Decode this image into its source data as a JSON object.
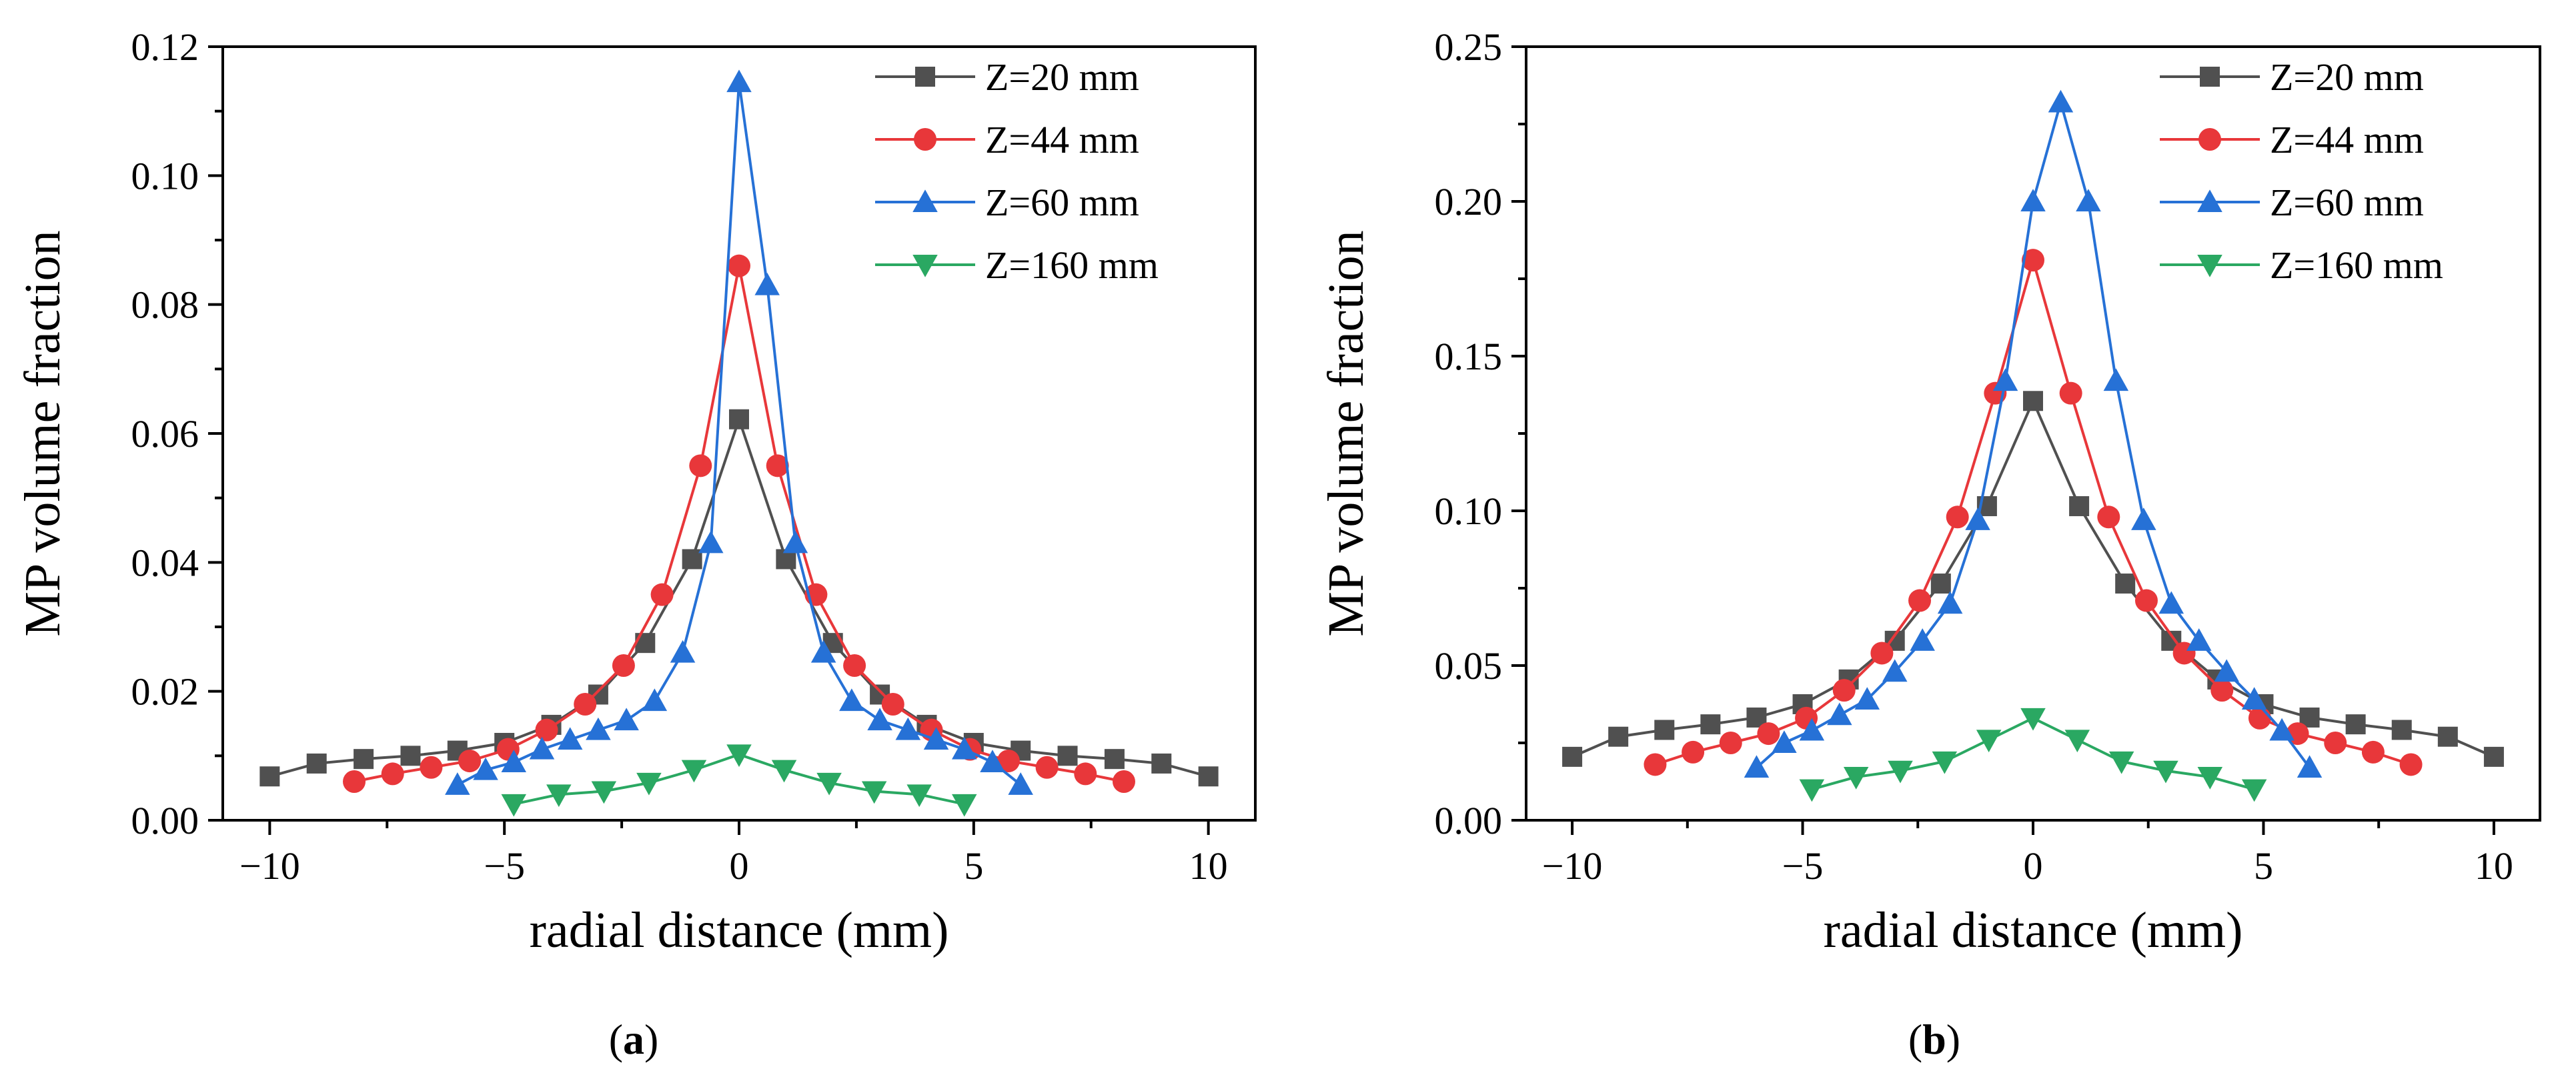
{
  "chart_data": [
    {
      "type": "line",
      "panel_label": "a",
      "xlabel": "radial distance (mm)",
      "ylabel": "MP volume fraction",
      "xlim": [
        -11,
        11
      ],
      "ylim": [
        0,
        0.12
      ],
      "xticks": [
        -10,
        -5,
        0,
        5,
        10
      ],
      "yticks": [
        0.0,
        0.02,
        0.04,
        0.06,
        0.08,
        0.1,
        0.12
      ],
      "xtick_labels": [
        "−10",
        "−5",
        "0",
        "5",
        "10"
      ],
      "ytick_labels": [
        "0.00",
        "0.02",
        "0.04",
        "0.06",
        "0.08",
        "0.10",
        "0.12"
      ],
      "legend_position": "top-right",
      "series": [
        {
          "name": "Z=20 mm",
          "color": "#505050",
          "marker": "square",
          "x": [
            -10,
            -9,
            -8,
            -7,
            -6,
            -5,
            -4,
            -3,
            -2,
            -1,
            0,
            1,
            2,
            3,
            4,
            5,
            6,
            7,
            8,
            9,
            10
          ],
          "y": [
            0.0068,
            0.0088,
            0.0095,
            0.01,
            0.0108,
            0.012,
            0.0148,
            0.0195,
            0.0275,
            0.0405,
            0.0622,
            0.0405,
            0.0275,
            0.0195,
            0.0148,
            0.012,
            0.0108,
            0.01,
            0.0095,
            0.0088,
            0.0068
          ]
        },
        {
          "name": "Z=44 mm",
          "color": "#e8373a",
          "marker": "circle",
          "x": [
            -8.2,
            -7.38,
            -6.56,
            -5.74,
            -4.92,
            -4.1,
            -3.28,
            -2.46,
            -1.64,
            -0.82,
            0,
            0.82,
            1.64,
            2.46,
            3.28,
            4.1,
            4.92,
            5.74,
            6.56,
            7.38,
            8.2
          ],
          "y": [
            0.006,
            0.0072,
            0.0082,
            0.0092,
            0.011,
            0.014,
            0.018,
            0.024,
            0.035,
            0.055,
            0.086,
            0.055,
            0.035,
            0.024,
            0.018,
            0.014,
            0.011,
            0.0092,
            0.0082,
            0.0072,
            0.006
          ]
        },
        {
          "name": "Z=60 mm",
          "color": "#2671d6",
          "marker": "triangle-up",
          "x": [
            -6,
            -5.4,
            -4.8,
            -4.2,
            -3.6,
            -3,
            -2.4,
            -1.8,
            -1.2,
            -0.6,
            0,
            0.6,
            1.2,
            1.8,
            2.4,
            3,
            3.6,
            4.2,
            4.8,
            5.4,
            6
          ],
          "y": [
            0.0055,
            0.0078,
            0.009,
            0.011,
            0.0125,
            0.014,
            0.0155,
            0.0185,
            0.026,
            0.043,
            0.1145,
            0.083,
            0.043,
            0.026,
            0.0185,
            0.0155,
            0.014,
            0.0125,
            0.011,
            0.009,
            0.0055
          ]
        },
        {
          "name": "Z=160 mm",
          "color": "#2aa862",
          "marker": "triangle-down",
          "x": [
            -4.8,
            -3.84,
            -2.88,
            -1.92,
            -0.96,
            0,
            0.96,
            1.92,
            2.88,
            3.84,
            4.8
          ],
          "y": [
            0.0025,
            0.004,
            0.0045,
            0.0058,
            0.0078,
            0.0102,
            0.0078,
            0.0058,
            0.0045,
            0.004,
            0.0025
          ]
        }
      ]
    },
    {
      "type": "line",
      "panel_label": "b",
      "xlabel": "radial distance (mm)",
      "ylabel": "MP volume fraction",
      "xlim": [
        -11,
        11
      ],
      "ylim": [
        0,
        0.25
      ],
      "xticks": [
        -10,
        -5,
        0,
        5,
        10
      ],
      "yticks": [
        0.0,
        0.05,
        0.1,
        0.15,
        0.2,
        0.25
      ],
      "xtick_labels": [
        "−10",
        "−5",
        "0",
        "5",
        "10"
      ],
      "ytick_labels": [
        "0.00",
        "0.05",
        "0.10",
        "0.15",
        "0.20",
        "0.25"
      ],
      "legend_position": "top-right",
      "series": [
        {
          "name": "Z=20 mm",
          "color": "#505050",
          "marker": "square",
          "x": [
            -10,
            -9,
            -8,
            -7,
            -6,
            -5,
            -4,
            -3,
            -2,
            -1,
            0,
            1,
            2,
            3,
            4,
            5,
            6,
            7,
            8,
            9,
            10
          ],
          "y": [
            0.0205,
            0.027,
            0.0292,
            0.031,
            0.0332,
            0.0375,
            0.0455,
            0.058,
            0.0765,
            0.1015,
            0.1355,
            0.1015,
            0.0765,
            0.058,
            0.0455,
            0.0375,
            0.0332,
            0.031,
            0.0292,
            0.027,
            0.0205
          ]
        },
        {
          "name": "Z=44 mm",
          "color": "#e8373a",
          "marker": "circle",
          "x": [
            -8.2,
            -7.38,
            -6.56,
            -5.74,
            -4.92,
            -4.1,
            -3.28,
            -2.46,
            -1.64,
            -0.82,
            0,
            0.82,
            1.64,
            2.46,
            3.28,
            4.1,
            4.92,
            5.74,
            6.56,
            7.38,
            8.2
          ],
          "y": [
            0.018,
            0.022,
            0.025,
            0.028,
            0.033,
            0.042,
            0.054,
            0.071,
            0.098,
            0.138,
            0.181,
            0.138,
            0.098,
            0.071,
            0.054,
            0.042,
            0.033,
            0.028,
            0.025,
            0.022,
            0.018
          ]
        },
        {
          "name": "Z=60 mm",
          "color": "#2671d6",
          "marker": "triangle-up",
          "x": [
            -6,
            -5.4,
            -4.8,
            -4.2,
            -3.6,
            -3,
            -2.4,
            -1.8,
            -1.2,
            -0.6,
            0,
            0.6,
            1.2,
            1.8,
            2.4,
            3,
            3.6,
            4.2,
            4.8,
            5.4,
            6
          ],
          "y": [
            0.017,
            0.025,
            0.029,
            0.034,
            0.039,
            0.048,
            0.058,
            0.07,
            0.097,
            0.142,
            0.2,
            0.232,
            0.2,
            0.142,
            0.097,
            0.07,
            0.058,
            0.048,
            0.039,
            0.029,
            0.017
          ]
        },
        {
          "name": "Z=160 mm",
          "color": "#2aa862",
          "marker": "triangle-down",
          "x": [
            -4.8,
            -3.84,
            -2.88,
            -1.92,
            -0.96,
            0,
            0.96,
            1.92,
            2.88,
            3.84,
            4.8
          ],
          "y": [
            0.01,
            0.014,
            0.016,
            0.019,
            0.026,
            0.033,
            0.026,
            0.019,
            0.016,
            0.014,
            0.01
          ]
        }
      ]
    }
  ]
}
